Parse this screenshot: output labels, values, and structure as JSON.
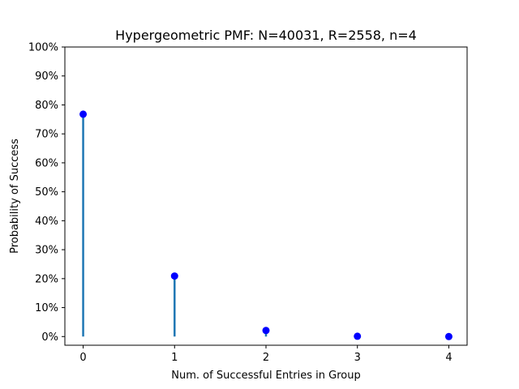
{
  "chart_data": {
    "type": "scatter",
    "title": "Hypergeometric PMF: N=40031, R=2558, n=4",
    "xlabel": "Num. of Successful Entries in Group",
    "ylabel": "Probability of Success",
    "x": [
      0,
      1,
      2,
      3,
      4
    ],
    "values": [
      0.768,
      0.209,
      0.021,
      0.001,
      0.0
    ],
    "x_ticks": [
      "0",
      "1",
      "2",
      "3",
      "4"
    ],
    "y_ticks": [
      "0%",
      "10%",
      "20%",
      "30%",
      "40%",
      "50%",
      "60%",
      "70%",
      "80%",
      "90%",
      "100%"
    ],
    "xlim": [
      -0.2,
      4.2
    ],
    "ylim": [
      -0.03,
      1.0
    ],
    "stem_color": "#1f77b4",
    "marker_color": "#0000ff",
    "grid": false
  }
}
